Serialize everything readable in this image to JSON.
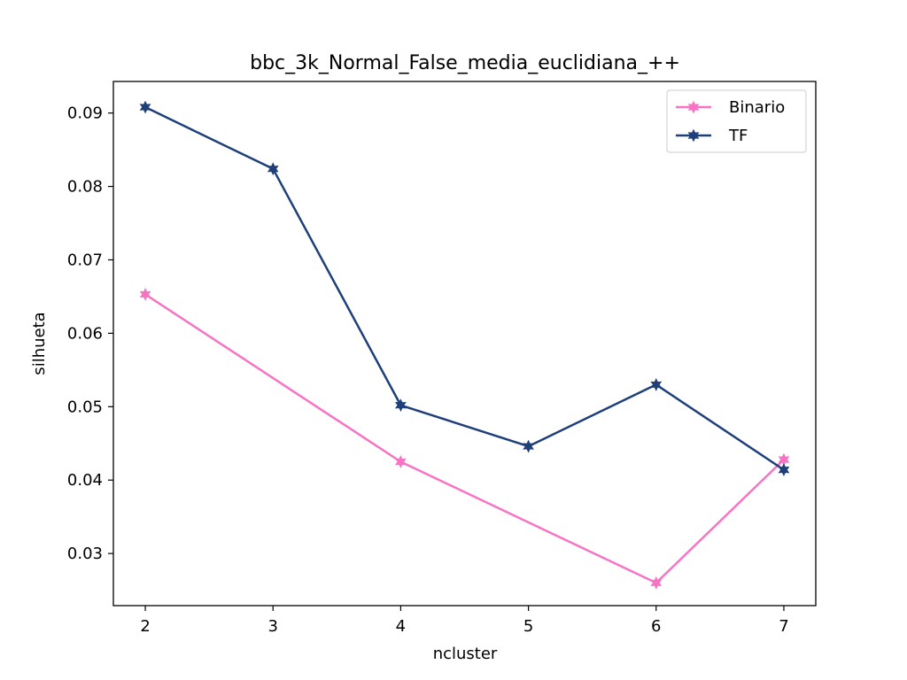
{
  "chart_data": {
    "type": "line",
    "title": "bbc_3k_Normal_False_media_euclidiana_++",
    "xlabel": "ncluster",
    "ylabel": "silhueta",
    "x": [
      2,
      3,
      4,
      5,
      6,
      7
    ],
    "xticks": [
      "2",
      "3",
      "4",
      "5",
      "6",
      "7"
    ],
    "yticks": [
      "0.03",
      "0.04",
      "0.05",
      "0.06",
      "0.07",
      "0.08",
      "0.09"
    ],
    "xlim": [
      1.75,
      7.25
    ],
    "ylim": [
      0.0229,
      0.0943
    ],
    "legend_position": "upper-right",
    "grid": false,
    "series": [
      {
        "name": "Binario",
        "color": "#f774c4",
        "marker": "star",
        "values": [
          0.0653,
          null,
          0.0425,
          null,
          0.026,
          0.0428
        ]
      },
      {
        "name": "TF",
        "color": "#1e3f7a",
        "marker": "star",
        "values": [
          0.0908,
          0.0824,
          0.0502,
          0.0446,
          0.053,
          0.0414
        ]
      }
    ]
  }
}
